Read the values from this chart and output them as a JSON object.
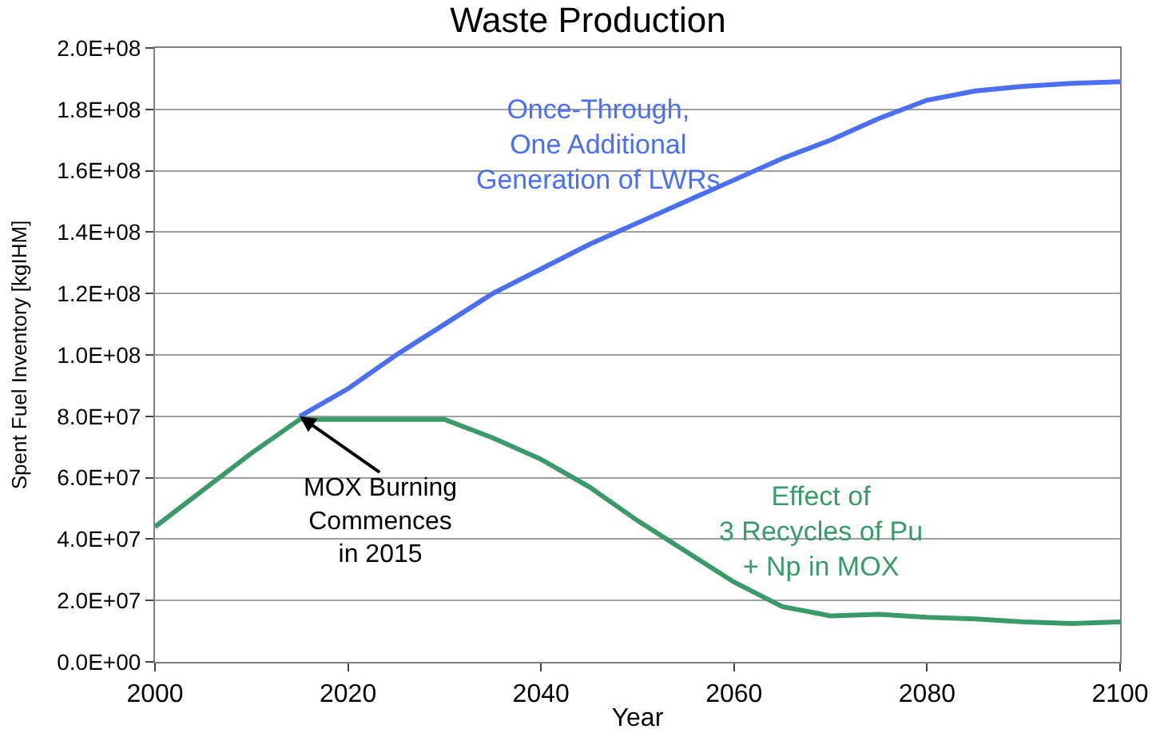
{
  "chart_data": {
    "type": "line",
    "title": "Waste Production",
    "xlabel": "Year",
    "ylabel": "Spent Fuel Inventory [kgIHM]",
    "xlim": [
      2000,
      2100
    ],
    "xticks": [
      2000,
      2020,
      2040,
      2060,
      2080,
      2100
    ],
    "ylim": [
      0,
      200000000
    ],
    "yticks": [
      {
        "value": 0,
        "label": "0.0E+00"
      },
      {
        "value": 20000000,
        "label": "2.0E+07"
      },
      {
        "value": 40000000,
        "label": "4.0E+07"
      },
      {
        "value": 60000000,
        "label": "6.0E+07"
      },
      {
        "value": 80000000,
        "label": "8.0E+07"
      },
      {
        "value": 100000000,
        "label": "1.0E+08"
      },
      {
        "value": 120000000,
        "label": "1.2E+08"
      },
      {
        "value": 140000000,
        "label": "1.4E+08"
      },
      {
        "value": 160000000,
        "label": "1.6E+08"
      },
      {
        "value": 180000000,
        "label": "1.8E+08"
      },
      {
        "value": 200000000,
        "label": "2.0E+08"
      }
    ],
    "grid": "y",
    "legend": false,
    "marker": "none",
    "line_style": "solid",
    "series": [
      {
        "name": "Once-Through,\nOne Additional\nGeneration of LWRs",
        "color": "#4a6ff0",
        "x": [
          2015,
          2020,
          2025,
          2030,
          2035,
          2040,
          2045,
          2050,
          2055,
          2060,
          2065,
          2070,
          2075,
          2080,
          2085,
          2090,
          2095,
          2100
        ],
        "values": [
          80000000,
          89000000,
          100000000,
          110000000,
          120000000,
          128000000,
          136000000,
          143000000,
          150000000,
          157000000,
          164000000,
          170000000,
          177000000,
          183000000,
          186000000,
          187500000,
          188500000,
          189000000
        ]
      },
      {
        "name": "Effect of\n3 Recycles of Pu\n+ Np in MOX",
        "color": "#3a9a6a",
        "x": [
          2000,
          2005,
          2010,
          2015,
          2020,
          2025,
          2030,
          2035,
          2040,
          2045,
          2050,
          2055,
          2060,
          2065,
          2070,
          2075,
          2080,
          2085,
          2090,
          2095,
          2100
        ],
        "values": [
          44000000,
          56000000,
          68000000,
          79000000,
          79000000,
          79000000,
          79000000,
          73000000,
          66000000,
          57000000,
          46000000,
          36000000,
          26000000,
          18000000,
          15000000,
          15500000,
          14500000,
          14000000,
          13000000,
          12500000,
          13000000
        ]
      }
    ],
    "annotations": [
      {
        "text": "MOX Burning\nCommences\nin 2015",
        "x": 2015,
        "y": 80000000
      }
    ]
  }
}
